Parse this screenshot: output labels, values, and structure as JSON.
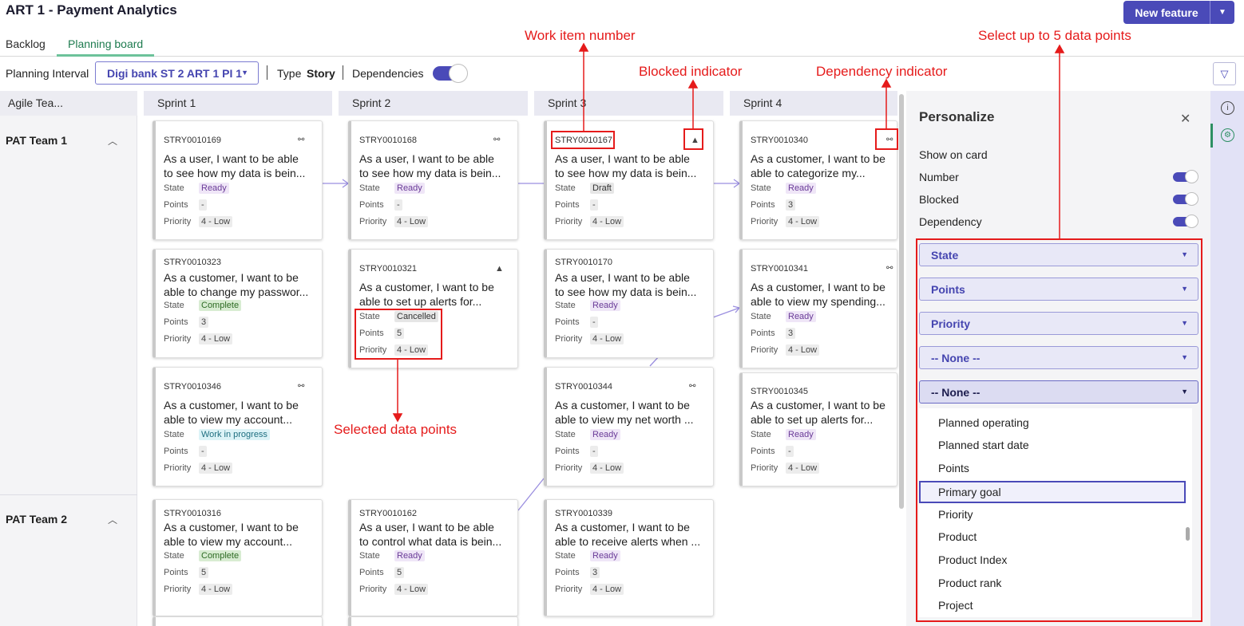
{
  "app": {
    "title": "ART 1 - Payment Analytics",
    "new_feature": "New feature"
  },
  "tabs": [
    {
      "label": "Backlog"
    },
    {
      "label": "Planning board"
    }
  ],
  "toolbar": {
    "planning_interval_label": "Planning Interval",
    "planning_interval_value": "Digi bank ST 2 ART 1 PI 1",
    "type_label": "Type",
    "type_value": "Story",
    "dependencies_label": "Dependencies",
    "dependencies_on": true
  },
  "board": {
    "agile_team_header": "Agile Tea...",
    "sprints": [
      "Sprint 1",
      "Sprint 2",
      "Sprint 3",
      "Sprint 4"
    ],
    "teams": [
      "PAT Team 1",
      "PAT Team 2"
    ],
    "labels": {
      "state": "State",
      "points": "Points",
      "priority": "Priority"
    },
    "cards": [
      {
        "number": "STRY0010169",
        "desc1": "As a user, I want to be able",
        "desc2": "to see how my data is bein...",
        "state": "Ready",
        "points": "-",
        "priority": "4 - Low",
        "dep": true,
        "blocked": false
      },
      {
        "number": "STRY0010168",
        "desc1": "As a user, I want to be able",
        "desc2": "to see how my data is bein...",
        "state": "Ready",
        "points": "-",
        "priority": "4 - Low",
        "dep": true,
        "blocked": false
      },
      {
        "number": "STRY0010167",
        "desc1": "As a user, I want to be able",
        "desc2": "to see how my data is bein...",
        "state": "Draft",
        "points": "-",
        "priority": "4 - Low",
        "dep": false,
        "blocked": true
      },
      {
        "number": "STRY0010340",
        "desc1": "As a customer, I want to be",
        "desc2": "able to categorize my...",
        "state": "Ready",
        "points": "3",
        "priority": "4 - Low",
        "dep": true,
        "blocked": false
      },
      {
        "number": "STRY0010323",
        "desc1": "As a customer, I want to be",
        "desc2": "able to change my passwor...",
        "state": "Complete",
        "points": "3",
        "priority": "4 - Low",
        "dep": false,
        "blocked": false
      },
      {
        "number": "STRY0010321",
        "desc1": "As a customer, I want to be",
        "desc2": "able to set up alerts for...",
        "state": "Cancelled",
        "points": "5",
        "priority": "4 - Low",
        "dep": false,
        "blocked": true
      },
      {
        "number": "STRY0010170",
        "desc1": "As a user, I want to be able",
        "desc2": "to see how my data is bein...",
        "state": "Ready",
        "points": "-",
        "priority": "4 - Low",
        "dep": false,
        "blocked": false
      },
      {
        "number": "STRY0010341",
        "desc1": "As a customer, I want to be",
        "desc2": "able to view my spending...",
        "state": "Ready",
        "points": "3",
        "priority": "4 - Low",
        "dep": true,
        "blocked": false
      },
      {
        "number": "STRY0010346",
        "desc1": "As a customer, I want to be",
        "desc2": "able to view my account...",
        "state": "Work in progress",
        "points": "-",
        "priority": "4 - Low",
        "dep": true,
        "blocked": false
      },
      {
        "number": "STRY0010344",
        "desc1": "As a customer, I want to be",
        "desc2": "able to view my net worth ...",
        "state": "Ready",
        "points": "-",
        "priority": "4 - Low",
        "dep": true,
        "blocked": false
      },
      {
        "number": "STRY0010345",
        "desc1": "As a customer, I want to be",
        "desc2": "able to set up alerts for...",
        "state": "Ready",
        "points": "-",
        "priority": "4 - Low",
        "dep": false,
        "blocked": false
      },
      {
        "number": "STRY0010316",
        "desc1": "As a customer, I want to be",
        "desc2": "able to view my account...",
        "state": "Complete",
        "points": "5",
        "priority": "4 - Low",
        "dep": false,
        "blocked": false
      },
      {
        "number": "STRY0010162",
        "desc1": "As a user, I want to be able",
        "desc2": "to control what data is bein...",
        "state": "Ready",
        "points": "5",
        "priority": "4 - Low",
        "dep": false,
        "blocked": false
      },
      {
        "number": "STRY0010339",
        "desc1": "As a customer, I want to be",
        "desc2": "able to receive alerts when ...",
        "state": "Ready",
        "points": "3",
        "priority": "4 - Low",
        "dep": false,
        "blocked": false
      }
    ]
  },
  "personalize": {
    "title": "Personalize",
    "show_on_card": "Show on card",
    "toggles": [
      {
        "label": "Number",
        "on": true
      },
      {
        "label": "Blocked",
        "on": true
      },
      {
        "label": "Dependency",
        "on": true
      }
    ],
    "dropdowns": [
      "State",
      "Points",
      "Priority",
      "-- None --",
      "-- None --"
    ],
    "options": [
      "Planned operating",
      "Planned start date",
      "Points",
      "Primary goal",
      "Priority",
      "Product",
      "Product Index",
      "Product rank",
      "Project"
    ],
    "highlighted_option": "Primary goal"
  },
  "annotations": {
    "work_item_number": "Work item number",
    "blocked_indicator": "Blocked indicator",
    "dependency_indicator": "Dependency indicator",
    "select_up_to_5": "Select up to 5 data points",
    "selected_data_points": "Selected data points"
  },
  "colors": {
    "accent": "#4a4ab8",
    "annotation": "#e51b1b",
    "tab_active": "#1e7b4f"
  }
}
